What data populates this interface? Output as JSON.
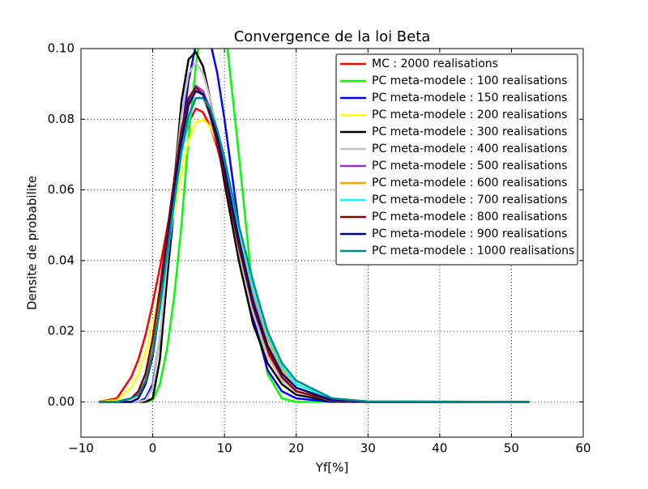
{
  "chart_data": {
    "type": "line",
    "title": "Convergence de la loi Beta",
    "xlabel": "Yf[%]",
    "ylabel": "Densite de probabilite",
    "x": [
      -7.5,
      -5,
      -3,
      -2,
      -1,
      0,
      1,
      2,
      3,
      4,
      5,
      6,
      7,
      8,
      9,
      10,
      12,
      14,
      16,
      18,
      20,
      25,
      30,
      52.5
    ],
    "series": [
      {
        "name": "MC : 2000 realisations",
        "color": "#ff0000",
        "values": [
          0,
          0.001,
          0.007,
          0.012,
          0.019,
          0.028,
          0.038,
          0.049,
          0.06,
          0.071,
          0.079,
          0.083,
          0.082,
          0.078,
          0.072,
          0.064,
          0.045,
          0.027,
          0.014,
          0.007,
          0.003,
          0.0003,
          0,
          0
        ]
      },
      {
        "name": "PC meta-modele : 100 realisations",
        "color": "#00ff00",
        "values": [
          0,
          0,
          0,
          0,
          0,
          0.0005,
          0.005,
          0.015,
          0.03,
          0.05,
          0.075,
          0.095,
          0.11,
          0.12,
          0.118,
          0.108,
          0.07,
          0.03,
          0.008,
          0.001,
          0,
          0,
          0,
          0
        ]
      },
      {
        "name": "PC meta-modele : 150 realisations",
        "color": "#0000ff",
        "values": [
          0,
          0,
          0,
          0,
          0.001,
          0.005,
          0.018,
          0.035,
          0.055,
          0.075,
          0.091,
          0.101,
          0.105,
          0.102,
          0.093,
          0.08,
          0.05,
          0.024,
          0.009,
          0.003,
          0.001,
          0,
          0,
          0
        ]
      },
      {
        "name": "PC meta-modele : 200 realisations",
        "color": "#ffff00",
        "values": [
          0,
          0.0005,
          0.004,
          0.008,
          0.014,
          0.022,
          0.032,
          0.043,
          0.054,
          0.065,
          0.074,
          0.079,
          0.08,
          0.078,
          0.073,
          0.066,
          0.049,
          0.032,
          0.019,
          0.01,
          0.005,
          0.0008,
          0.0001,
          0
        ]
      },
      {
        "name": "PC meta-modele : 300 realisations",
        "color": "#000000",
        "values": [
          0,
          0,
          0,
          0,
          0,
          0.001,
          0.012,
          0.035,
          0.062,
          0.085,
          0.097,
          0.099,
          0.095,
          0.086,
          0.074,
          0.062,
          0.04,
          0.022,
          0.011,
          0.005,
          0.002,
          0.0002,
          0,
          0
        ]
      },
      {
        "name": "PC meta-modele : 400 realisations",
        "color": "#c0c0c0",
        "values": [
          0,
          0,
          0,
          0,
          0.0005,
          0.004,
          0.018,
          0.04,
          0.062,
          0.081,
          0.093,
          0.096,
          0.093,
          0.086,
          0.076,
          0.065,
          0.043,
          0.025,
          0.013,
          0.006,
          0.003,
          0.0003,
          0,
          0
        ]
      },
      {
        "name": "PC meta-modele : 500 realisations",
        "color": "#9932cc",
        "values": [
          0,
          0,
          0.001,
          0.003,
          0.008,
          0.017,
          0.03,
          0.045,
          0.06,
          0.074,
          0.085,
          0.0895,
          0.088,
          0.083,
          0.075,
          0.066,
          0.046,
          0.029,
          0.016,
          0.008,
          0.004,
          0.0005,
          0,
          0
        ]
      },
      {
        "name": "PC meta-modele : 600 realisations",
        "color": "#ffa500",
        "values": [
          0,
          0,
          0.001,
          0.003,
          0.008,
          0.016,
          0.028,
          0.042,
          0.057,
          0.071,
          0.081,
          0.086,
          0.086,
          0.082,
          0.075,
          0.067,
          0.048,
          0.031,
          0.018,
          0.009,
          0.004,
          0.0006,
          0,
          0
        ]
      },
      {
        "name": "PC meta-modele : 700 realisations",
        "color": "#00ffff",
        "values": [
          0,
          0,
          0.001,
          0.002,
          0.006,
          0.014,
          0.026,
          0.041,
          0.056,
          0.07,
          0.08,
          0.086,
          0.086,
          0.083,
          0.076,
          0.068,
          0.049,
          0.032,
          0.019,
          0.01,
          0.005,
          0.0008,
          0.0001,
          0
        ]
      },
      {
        "name": "PC meta-modele : 800 realisations",
        "color": "#8b0000",
        "values": [
          0,
          0,
          0.001,
          0.003,
          0.008,
          0.018,
          0.032,
          0.048,
          0.063,
          0.077,
          0.086,
          0.089,
          0.087,
          0.081,
          0.073,
          0.064,
          0.044,
          0.027,
          0.015,
          0.007,
          0.003,
          0.0004,
          0,
          0
        ]
      },
      {
        "name": "PC meta-modele : 900 realisations",
        "color": "#000080",
        "values": [
          0,
          0,
          0,
          0.001,
          0.005,
          0.013,
          0.027,
          0.044,
          0.06,
          0.074,
          0.084,
          0.088,
          0.087,
          0.082,
          0.075,
          0.066,
          0.046,
          0.028,
          0.016,
          0.008,
          0.004,
          0.0005,
          0,
          0
        ]
      },
      {
        "name": "PC meta-modele : 1000 realisations",
        "color": "#008b8b",
        "values": [
          0,
          0,
          0.001,
          0.002,
          0.006,
          0.014,
          0.027,
          0.042,
          0.057,
          0.071,
          0.081,
          0.086,
          0.086,
          0.083,
          0.077,
          0.069,
          0.05,
          0.034,
          0.02,
          0.011,
          0.006,
          0.001,
          0.0001,
          0
        ]
      }
    ],
    "xlim": [
      -10,
      60
    ],
    "xticks": [
      {
        "value": -10,
        "label": "−10"
      },
      0,
      10,
      20,
      30,
      40,
      50,
      60
    ],
    "ylim": [
      -0.01,
      0.1
    ],
    "yticks": [
      {
        "value": 0,
        "label": "0.00"
      },
      {
        "value": 0.02,
        "label": "0.02"
      },
      {
        "value": 0.04,
        "label": "0.04"
      },
      {
        "value": 0.06,
        "label": "0.06"
      },
      {
        "value": 0.08,
        "label": "0.08"
      },
      {
        "value": 0.1,
        "label": "0.10"
      }
    ],
    "grid": true,
    "legend": "upper right"
  }
}
